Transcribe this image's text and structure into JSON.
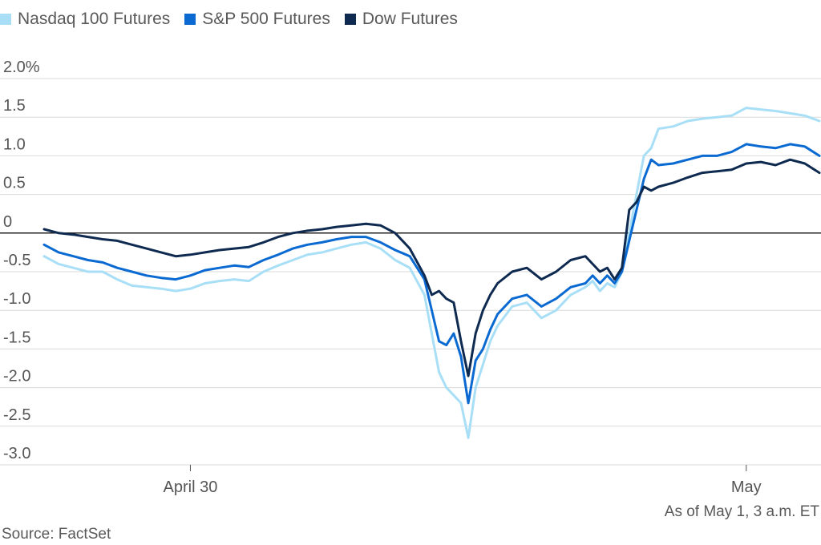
{
  "chart_data": {
    "type": "line",
    "ylabel_top": "2.0%",
    "y_ticks": [
      {
        "value": 2.0,
        "label": "2.0%"
      },
      {
        "value": 1.5,
        "label": "1.5"
      },
      {
        "value": 1.0,
        "label": "1.0"
      },
      {
        "value": 0.5,
        "label": "0.5"
      },
      {
        "value": 0,
        "label": "0"
      },
      {
        "value": -0.5,
        "label": "-0.5"
      },
      {
        "value": -1.0,
        "label": "-1.0"
      },
      {
        "value": -1.5,
        "label": "-1.5"
      },
      {
        "value": -2.0,
        "label": "-2.0"
      },
      {
        "value": -2.5,
        "label": "-2.5"
      },
      {
        "value": -3.0,
        "label": "-3.0"
      }
    ],
    "ylim": [
      -3.0,
      2.0
    ],
    "x_ticks": [
      {
        "hour": 10,
        "label": "April 30"
      },
      {
        "hour": 48,
        "label": "May"
      }
    ],
    "xlim": [
      0,
      53
    ],
    "grid": true,
    "legend_position": "top-left",
    "x": [
      0,
      1,
      2,
      3,
      4,
      5,
      6,
      7,
      8,
      9,
      10,
      11,
      12,
      13,
      14,
      15,
      16,
      17,
      18,
      19,
      20,
      21,
      22,
      23,
      24,
      25,
      26,
      26.5,
      27,
      27.5,
      28,
      28.5,
      29,
      29.5,
      30,
      30.5,
      31,
      32,
      33,
      34,
      35,
      36,
      37,
      37.5,
      38,
      38.5,
      39,
      39.5,
      40,
      40.5,
      41,
      41.5,
      42,
      43,
      44,
      45,
      46,
      47,
      48,
      49,
      50,
      51,
      52,
      53
    ],
    "series": [
      {
        "name": "Nasdaq 100 Futures",
        "color": "#a8dff7",
        "values": [
          -0.3,
          -0.4,
          -0.45,
          -0.5,
          -0.5,
          -0.6,
          -0.68,
          -0.7,
          -0.72,
          -0.75,
          -0.72,
          -0.65,
          -0.62,
          -0.6,
          -0.62,
          -0.5,
          -0.42,
          -0.35,
          -0.28,
          -0.25,
          -0.2,
          -0.15,
          -0.12,
          -0.2,
          -0.35,
          -0.45,
          -0.8,
          -1.3,
          -1.8,
          -2.0,
          -2.1,
          -2.2,
          -2.65,
          -2.0,
          -1.7,
          -1.4,
          -1.2,
          -0.95,
          -0.9,
          -1.1,
          -1.0,
          -0.8,
          -0.7,
          -0.62,
          -0.75,
          -0.65,
          -0.7,
          -0.5,
          0.0,
          0.5,
          1.0,
          1.1,
          1.35,
          1.38,
          1.45,
          1.48,
          1.5,
          1.52,
          1.62,
          1.6,
          1.58,
          1.55,
          1.52,
          1.45
        ]
      },
      {
        "name": "S&P 500 Futures",
        "color": "#0a6ad1",
        "values": [
          -0.15,
          -0.25,
          -0.3,
          -0.35,
          -0.38,
          -0.45,
          -0.5,
          -0.55,
          -0.58,
          -0.6,
          -0.55,
          -0.48,
          -0.45,
          -0.42,
          -0.44,
          -0.35,
          -0.28,
          -0.2,
          -0.15,
          -0.12,
          -0.08,
          -0.05,
          -0.05,
          -0.12,
          -0.22,
          -0.3,
          -0.6,
          -1.0,
          -1.4,
          -1.45,
          -1.3,
          -1.6,
          -2.2,
          -1.65,
          -1.5,
          -1.25,
          -1.05,
          -0.85,
          -0.8,
          -0.95,
          -0.85,
          -0.7,
          -0.65,
          -0.55,
          -0.65,
          -0.55,
          -0.65,
          -0.5,
          -0.1,
          0.3,
          0.7,
          0.95,
          0.88,
          0.9,
          0.95,
          1.0,
          1.0,
          1.05,
          1.15,
          1.12,
          1.1,
          1.15,
          1.12,
          1.0
        ]
      },
      {
        "name": "Dow Futures",
        "color": "#0f2a50",
        "values": [
          0.05,
          0.0,
          -0.02,
          -0.05,
          -0.08,
          -0.1,
          -0.15,
          -0.2,
          -0.25,
          -0.3,
          -0.28,
          -0.25,
          -0.22,
          -0.2,
          -0.18,
          -0.12,
          -0.05,
          0.0,
          0.03,
          0.05,
          0.08,
          0.1,
          0.12,
          0.1,
          0.0,
          -0.2,
          -0.55,
          -0.8,
          -0.75,
          -0.85,
          -0.9,
          -1.4,
          -1.85,
          -1.3,
          -1.0,
          -0.8,
          -0.65,
          -0.5,
          -0.45,
          -0.6,
          -0.5,
          -0.35,
          -0.3,
          -0.4,
          -0.5,
          -0.45,
          -0.6,
          -0.45,
          0.3,
          0.4,
          0.6,
          0.55,
          0.6,
          0.65,
          0.72,
          0.78,
          0.8,
          0.82,
          0.9,
          0.92,
          0.88,
          0.95,
          0.9,
          0.78
        ]
      }
    ],
    "note": "As of May 1, 3 a.m. ET",
    "source": "Source: FactSet"
  },
  "legend": [
    {
      "label": "Nasdaq 100 Futures",
      "color": "#a8dff7"
    },
    {
      "label": "S&P 500 Futures",
      "color": "#0a6ad1"
    },
    {
      "label": "Dow Futures",
      "color": "#0f2a50"
    }
  ]
}
